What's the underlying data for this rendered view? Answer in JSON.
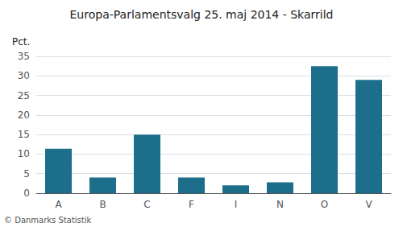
{
  "chart_data": {
    "type": "bar",
    "title": "Europa-Parlamentsvalg 25. maj 2014 - Skarrild",
    "categories": [
      "A",
      "B",
      "C",
      "F",
      "I",
      "N",
      "O",
      "V"
    ],
    "values": [
      11.4,
      4.0,
      15.0,
      4.0,
      2.0,
      2.8,
      32.5,
      29.0
    ],
    "color": "#1c6e8a",
    "ylabel": "Pct.",
    "ylim": [
      0,
      35
    ],
    "yticks": [
      0,
      5,
      10,
      15,
      20,
      25,
      30,
      35
    ],
    "grid": true,
    "footer": "© Danmarks Statistik"
  }
}
